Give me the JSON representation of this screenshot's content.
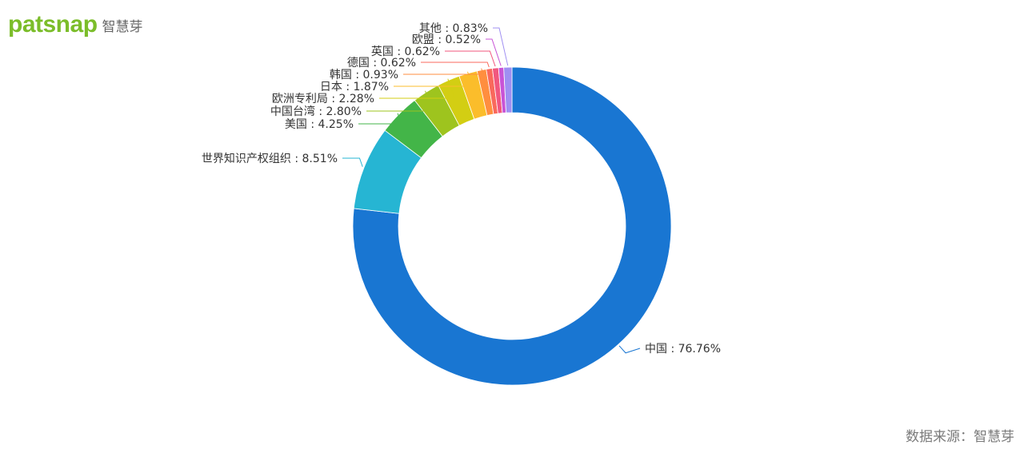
{
  "logo": {
    "word": "patsnap",
    "cn": "智慧芽",
    "color": "#7bbd2a"
  },
  "source": "数据来源：智慧芽",
  "chart_data": {
    "type": "pie",
    "subtype": "donut",
    "title": "",
    "slices": [
      {
        "label": "中国",
        "value": 76.76,
        "text": "中国 : 76.76%",
        "color": "#1976d2"
      },
      {
        "label": "世界知识产权组织",
        "value": 8.51,
        "text": "世界知识产权组织 : 8.51%",
        "color": "#26b5d3"
      },
      {
        "label": "美国",
        "value": 4.25,
        "text": "美国 : 4.25%",
        "color": "#43b548"
      },
      {
        "label": "中国台湾",
        "value": 2.8,
        "text": "中国台湾 : 2.80%",
        "color": "#9ec41e"
      },
      {
        "label": "欧洲专利局",
        "value": 2.28,
        "text": "欧洲专利局 : 2.28%",
        "color": "#d3ce13"
      },
      {
        "label": "日本",
        "value": 1.87,
        "text": "日本 : 1.87%",
        "color": "#fbbd2b"
      },
      {
        "label": "韩国",
        "value": 0.93,
        "text": "韩国 : 0.93%",
        "color": "#ff8e3f"
      },
      {
        "label": "德国",
        "value": 0.62,
        "text": "德国 : 0.62%",
        "color": "#f9695c"
      },
      {
        "label": "英国",
        "value": 0.62,
        "text": "英国 : 0.62%",
        "color": "#f1577e"
      },
      {
        "label": "欧盟",
        "value": 0.52,
        "text": "欧盟 : 0.52%",
        "color": "#c854d6"
      },
      {
        "label": "其他",
        "value": 0.83,
        "text": "其他 : 0.83%",
        "color": "#9f8ff2"
      }
    ]
  }
}
